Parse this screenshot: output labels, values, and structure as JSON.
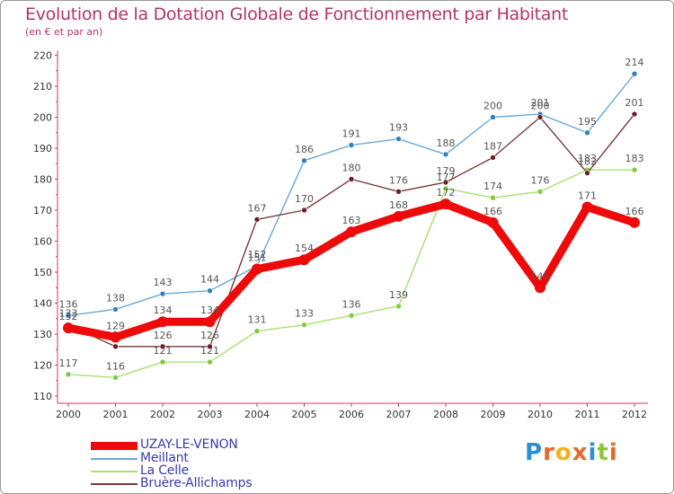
{
  "title": "Evolution de la Dotation Globale de Fonctionnement par Habitant",
  "subtitle": "(en € et par an)",
  "logo": {
    "text": "Proxiti",
    "colors": [
      "#2b8fd6",
      "#e8682c",
      "#f2b21a",
      "#e8682c",
      "#2b8fd6",
      "#8cc63f",
      "#e8682c"
    ]
  },
  "chart_data": {
    "type": "line",
    "x": [
      "2000",
      "2001",
      "2002",
      "2003",
      "2004",
      "2005",
      "2006",
      "2007",
      "2008",
      "2009",
      "2010",
      "2011",
      "2012"
    ],
    "ylim": [
      110,
      220
    ],
    "yticks": [
      "110",
      "120",
      "130",
      "140",
      "150",
      "160",
      "170",
      "180",
      "190",
      "200",
      "210",
      "220"
    ],
    "grid": false,
    "legend_position": "bottom-left",
    "series": [
      {
        "name": "Meillant",
        "color": "#6aa8d8",
        "dot_color": "#2f80c3",
        "values": [
          136,
          138,
          143,
          144,
          152,
          186,
          191,
          193,
          188,
          200,
          201,
          195,
          214
        ]
      },
      {
        "name": "La Celle",
        "color": "#a8e070",
        "dot_color": "#7ecb3c",
        "values": [
          117,
          116,
          121,
          121,
          131,
          133,
          136,
          139,
          177,
          174,
          176,
          183,
          183
        ]
      },
      {
        "name": "Bruère-Allichamps",
        "color": "#7a3a3a",
        "dot_color": "#6b1f28",
        "values": [
          133,
          126,
          126,
          126,
          167,
          170,
          180,
          176,
          179,
          187,
          200,
          182,
          201
        ]
      },
      {
        "name": "UZAY-LE-VENON",
        "color": "#ee0a0a",
        "dot_color": "#ee0a0a",
        "values": [
          132,
          129,
          134,
          134,
          151,
          154,
          163,
          168,
          172,
          166,
          145,
          171,
          166
        ]
      }
    ]
  },
  "legend": [
    {
      "label": "UZAY-LE-VENON",
      "color": "#ee0a0a",
      "text_color": "#3a3aaa"
    },
    {
      "label": "Meillant",
      "color": "#6aa8d8",
      "text_color": "#3a3aaa"
    },
    {
      "label": "La Celle",
      "color": "#a8e070",
      "text_color": "#3a3aaa"
    },
    {
      "label": "Bruère-Allichamps",
      "color": "#7a3a3a",
      "text_color": "#3a3aaa"
    }
  ]
}
